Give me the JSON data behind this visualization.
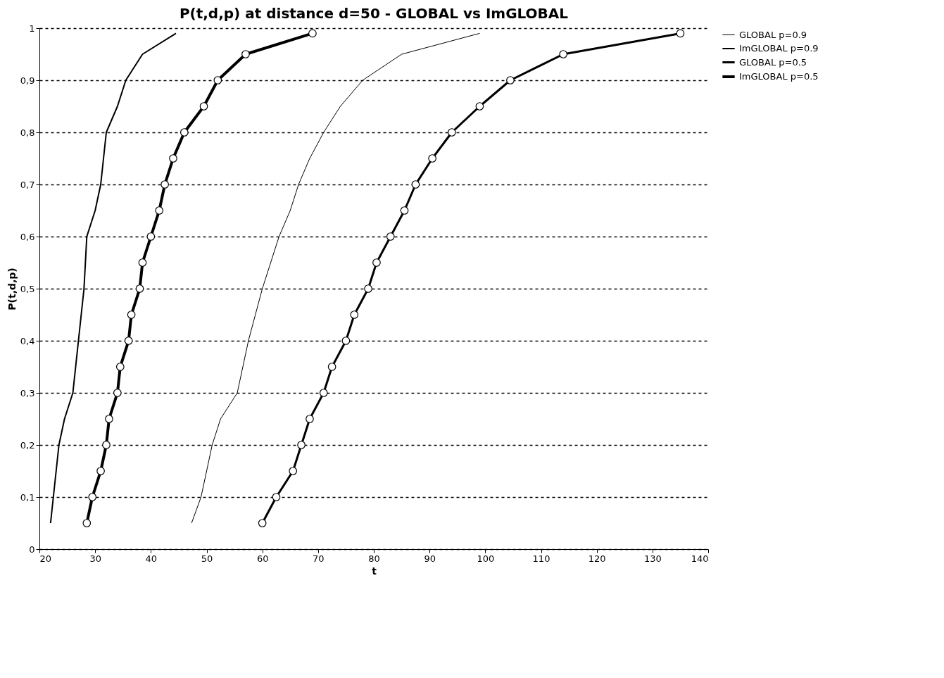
{
  "chart_data": {
    "type": "line",
    "title": "P(t,d,p) at distance d=50 - GLOBAL vs ImGLOBAL",
    "xlabel": "t",
    "ylabel": "P(t,d,p)",
    "xlim": [
      20,
      140
    ],
    "xticks": [
      20,
      30,
      40,
      50,
      60,
      70,
      80,
      90,
      100,
      110,
      120,
      130,
      140
    ],
    "ylim": [
      0,
      1
    ],
    "yticks": [
      0,
      {
        "value": 0.1,
        "label": "0,1"
      },
      {
        "value": 0.2,
        "label": "0,2"
      },
      {
        "value": 0.3,
        "label": "0,3"
      },
      {
        "value": 0.4,
        "label": "0,4"
      },
      {
        "value": 0.5,
        "label": "0,5"
      },
      {
        "value": 0.6,
        "label": "0,6"
      },
      {
        "value": 0.7,
        "label": "0,7"
      },
      {
        "value": 0.8,
        "label": "0,8"
      },
      {
        "value": 0.9,
        "label": "0,9"
      },
      1
    ],
    "grid": "y",
    "legend": "right",
    "line_style": "solid",
    "series": [
      {
        "name": "GLOBAL p=0.9",
        "color": "#000000",
        "marker": "none",
        "x": [
          47.3,
          49,
          51,
          52.5,
          55.5,
          57.5,
          60,
          63,
          65,
          66.5,
          68.5,
          71,
          74,
          78,
          85,
          99
        ],
        "values": [
          0.05,
          0.1,
          0.2,
          0.25,
          0.3,
          0.4,
          0.5,
          0.6,
          0.65,
          0.7,
          0.75,
          0.8,
          0.85,
          0.9,
          0.95,
          0.99
        ]
      },
      {
        "name": "ImGLOBAL p=0.9",
        "color": "#000000",
        "marker": "none",
        "x": [
          22,
          22.5,
          23.5,
          24.5,
          26,
          27,
          28,
          28.5,
          30,
          31,
          31.5,
          32,
          34,
          35.5,
          38.5,
          44.5
        ],
        "values": [
          0.05,
          0.1,
          0.2,
          0.25,
          0.3,
          0.4,
          0.5,
          0.6,
          0.65,
          0.7,
          0.75,
          0.8,
          0.85,
          0.9,
          0.95,
          0.99
        ]
      },
      {
        "name": "GLOBAL p=0.5",
        "color": "#000000",
        "marker": "circle",
        "x": [
          60,
          62.5,
          65.5,
          67,
          68.5,
          71,
          72.5,
          75,
          76.5,
          79,
          80.5,
          83,
          85.5,
          87.5,
          90.5,
          94,
          99,
          104.5,
          114,
          135
        ],
        "values": [
          0.05,
          0.1,
          0.15,
          0.2,
          0.25,
          0.3,
          0.35,
          0.4,
          0.45,
          0.5,
          0.55,
          0.6,
          0.65,
          0.7,
          0.75,
          0.8,
          0.85,
          0.9,
          0.95,
          0.99
        ]
      },
      {
        "name": "ImGLOBAL p=0.5",
        "color": "#000000",
        "marker": "circle",
        "x": [
          28.5,
          29.5,
          31,
          32,
          32.5,
          34,
          34.5,
          36,
          36.5,
          38,
          38.5,
          40,
          41.5,
          42.5,
          44,
          46,
          49.5,
          52,
          57,
          69
        ],
        "values": [
          0.05,
          0.1,
          0.15,
          0.2,
          0.25,
          0.3,
          0.35,
          0.4,
          0.45,
          0.5,
          0.55,
          0.6,
          0.65,
          0.7,
          0.75,
          0.8,
          0.85,
          0.9,
          0.95,
          0.99
        ]
      }
    ]
  }
}
